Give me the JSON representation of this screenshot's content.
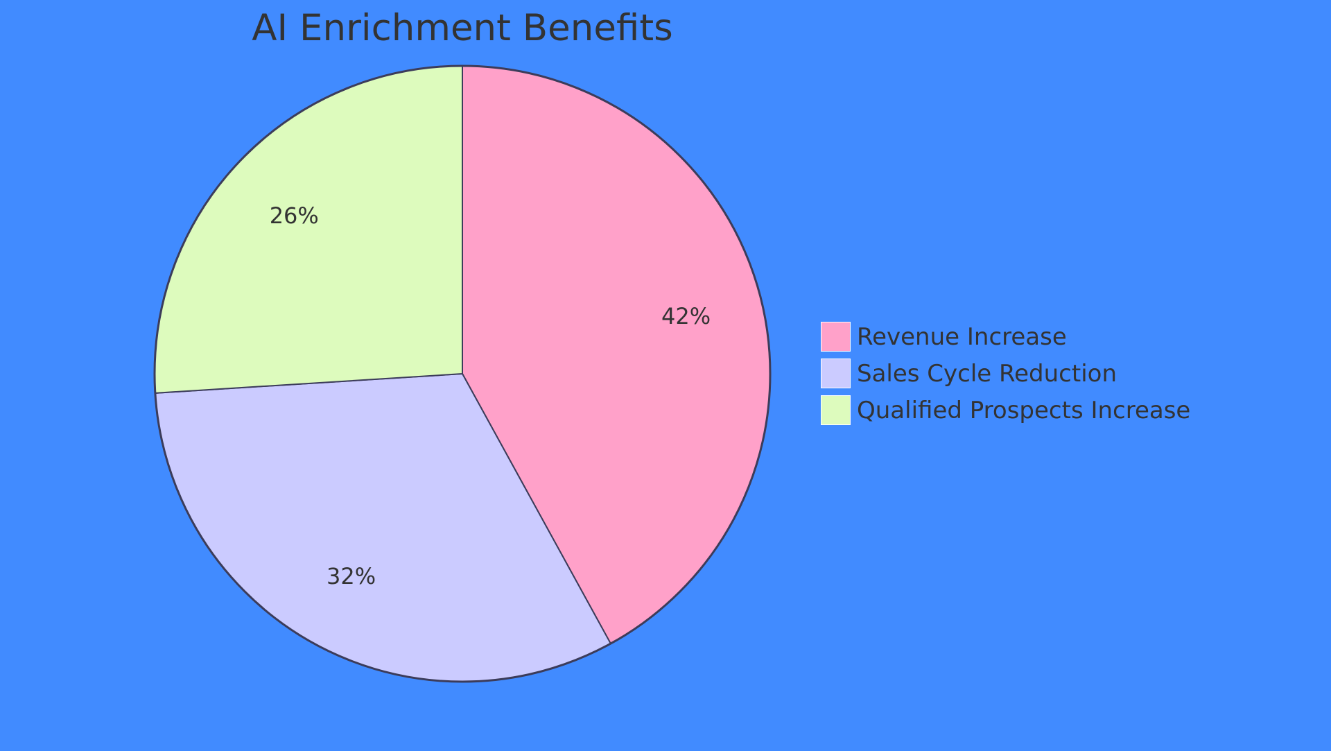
{
  "background_color": "#418bff",
  "chart_data": {
    "type": "pie",
    "title": "AI Enrichment Benefits",
    "categories": [
      "Revenue Increase",
      "Sales Cycle Reduction",
      "Qualified Prospects Increase"
    ],
    "values": [
      42,
      32,
      26
    ],
    "labels": [
      "42%",
      "32%",
      "26%"
    ],
    "colors": [
      "#ffa1c9",
      "#cbcbff",
      "#ddfbbd"
    ],
    "stroke_color": "#3c3c5a",
    "legend_position": "right",
    "start_angle": "12 o'clock",
    "direction": "clockwise"
  }
}
